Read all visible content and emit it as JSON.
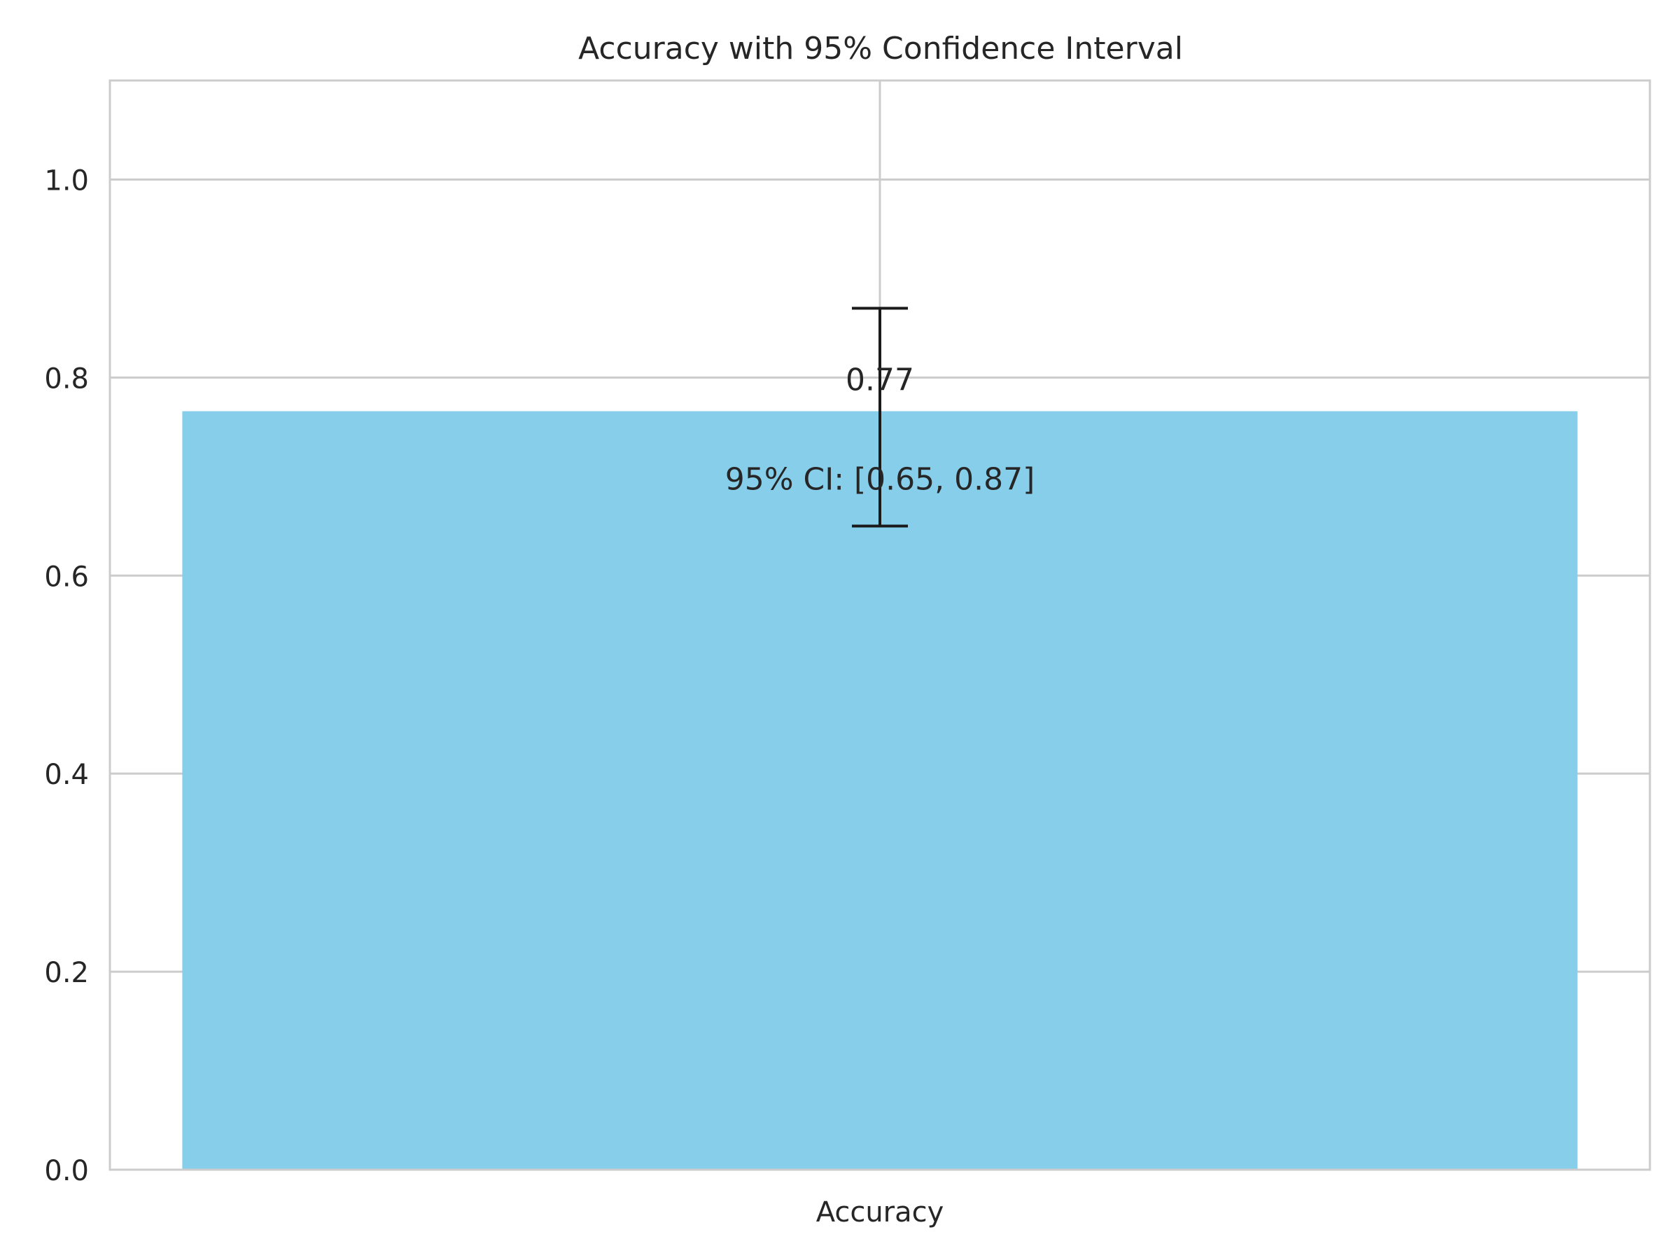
{
  "chart_data": {
    "type": "bar",
    "title": "Accuracy with 95% Confidence Interval",
    "xlabel": "",
    "ylabel": "",
    "categories": [
      "Accuracy"
    ],
    "values": [
      0.766
    ],
    "error": {
      "lower": [
        0.65
      ],
      "upper": [
        0.87
      ]
    },
    "ylim": [
      0,
      1.1
    ],
    "yticks": [
      0.0,
      0.2,
      0.4,
      0.6,
      0.8,
      1.0
    ],
    "ytick_labels": [
      "0.0",
      "0.2",
      "0.4",
      "0.6",
      "0.8",
      "1.0"
    ],
    "grid": true,
    "annotations": {
      "value_label": "0.77",
      "ci_label": "95% CI: [0.65, 0.87]"
    },
    "colors": {
      "bar": "#87CEEB",
      "errorbar": "#1a1a1a",
      "grid": "#cccccc",
      "spine": "#cccccc",
      "text": "#262626"
    }
  }
}
